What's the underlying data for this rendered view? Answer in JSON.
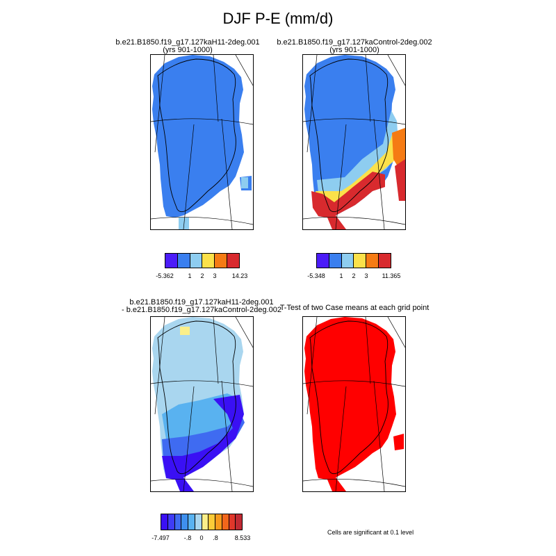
{
  "page": {
    "title": "DJF P-E (mm/d)"
  },
  "colors": {
    "dark_blue": "#4B1CF8",
    "blue": "#3A7FEF",
    "light_blue": "#8ECDF0",
    "yellow": "#FBE14A",
    "orange": "#F57B14",
    "red": "#D82A2E",
    "sig_red": "#FF0000",
    "pale_blue": "#A9D6EF"
  },
  "panels": [
    {
      "id": "case1",
      "title_line1": "b.e21.B1850.f19_g17.127kaH11-2deg.001",
      "title_line2": "(yrs 901-1000)",
      "colorbar": {
        "colors": [
          "#4B1CF8",
          "#3A7FEF",
          "#8ECDF0",
          "#FBE14A",
          "#F57B14",
          "#D82A2E"
        ],
        "labels": [
          "-5.362",
          "1",
          "2",
          "3",
          "14.23"
        ]
      }
    },
    {
      "id": "case2",
      "title_line1": "b.e21.B1850.f19_g17.127kaControl-2deg.002",
      "title_line2": "(yrs 901-1000)",
      "colorbar": {
        "colors": [
          "#4B1CF8",
          "#3A7FEF",
          "#8ECDF0",
          "#FBE14A",
          "#F57B14",
          "#D82A2E"
        ],
        "labels": [
          "-5.348",
          "1",
          "2",
          "3",
          "11.365"
        ]
      }
    },
    {
      "id": "diff",
      "title_line1": "b.e21.B1850.f19_g17.127kaH11-2deg.001",
      "title_line2": "- b.e21.B1850.f19_g17.127kaControl-2deg.002",
      "colorbar": {
        "colors": [
          "#3A10F4",
          "#3F3CF6",
          "#3F6BF1",
          "#3E8FEE",
          "#59B2F0",
          "#A9D6EF",
          "#FBEF8A",
          "#FCCB38",
          "#F89A1D",
          "#F2661B",
          "#E0372A",
          "#C02A33"
        ],
        "labels": [
          "-7.497",
          "-.8",
          "0",
          ".8",
          "8.533"
        ]
      }
    },
    {
      "id": "ttest",
      "title_line1": "T-Test of two Case means at each grid point",
      "title_line2": "",
      "note": "Cells are significant at 0.1 level"
    }
  ],
  "chart_data": [
    {
      "type": "heatmap",
      "title": "b.e21.B1850.f19_g17.127kaH11-2deg.001 (yrs 901-1000)",
      "region": "Greenland",
      "colorbar_labels": [
        "-5.362",
        "1",
        "2",
        "3",
        "14.23"
      ],
      "dominant_class": "0 to 1",
      "coastal_patches": [
        "1 to 2 (south tip)"
      ]
    },
    {
      "type": "heatmap",
      "title": "b.e21.B1850.f19_g17.127kaControl-2deg.002 (yrs 901-1000)",
      "region": "Greenland",
      "colorbar_labels": [
        "-5.348",
        "1",
        "2",
        "3",
        "11.365"
      ],
      "north_class": "0 to 1",
      "south_classes": [
        "1 to 2",
        "2 to 3",
        "3 to 11.365"
      ]
    },
    {
      "type": "heatmap",
      "title": "Difference: H11 minus Control",
      "region": "Greenland",
      "colorbar_labels": [
        "-7.497",
        "-.8",
        "0",
        ".8",
        "8.533"
      ],
      "north_class": "-0.8 to 0",
      "south_class": "-7.497 to -0.8"
    },
    {
      "type": "heatmap",
      "title": "T-Test of two Case means at each grid point",
      "region": "Greenland",
      "significant_at": 0.1
    }
  ]
}
